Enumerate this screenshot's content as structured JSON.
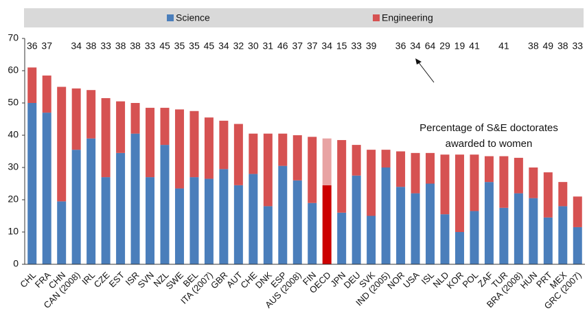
{
  "chart_data": {
    "type": "stacked_bar",
    "categories": [
      "CHL",
      "FRA",
      "CHN",
      "CAN (2008)",
      "IRL",
      "CZE",
      "EST",
      "ISR",
      "SVN",
      "NZL",
      "SWE",
      "BEL",
      "ITA (2007)",
      "GBR",
      "AUT",
      "CHE",
      "DNK",
      "ESP",
      "AUS (2008)",
      "FIN",
      "OECD",
      "JPN",
      "DEU",
      "SVK",
      "IND (2005)",
      "NOR",
      "USA",
      "ISL",
      "NLD",
      "KOR",
      "POL",
      "ZAF",
      "TUR",
      "BRA (2008)",
      "HUN",
      "PRT",
      "MEX",
      "GRC (2007)"
    ],
    "series": [
      {
        "name": "Science",
        "color": "#4a7ebb",
        "values": [
          50,
          47,
          19.5,
          35.5,
          39,
          27,
          34.5,
          40.5,
          27,
          37,
          23.5,
          27,
          26.5,
          29.5,
          24.5,
          28,
          18,
          30.5,
          26,
          19,
          24.5,
          16,
          27.5,
          15,
          30,
          24,
          22,
          25,
          15.5,
          10,
          16.5,
          25.5,
          17.5,
          22,
          20.5,
          14.5,
          18,
          11.5
        ]
      },
      {
        "name": "Engineering",
        "color": "#d65252",
        "values": [
          11,
          11.5,
          35.5,
          19,
          15,
          24.5,
          16,
          9.5,
          21.5,
          11.5,
          24.5,
          20.5,
          19,
          15,
          19,
          12.5,
          22.5,
          10,
          14,
          20.5,
          14.5,
          22.5,
          9.5,
          20.5,
          5.5,
          11,
          12.5,
          9.5,
          18.5,
          24,
          17.5,
          8,
          16,
          11,
          9.5,
          14,
          7.5,
          9.5
        ]
      }
    ],
    "highlight": {
      "category": "OECD",
      "colors": [
        "#cc0000",
        "#e8a3a3"
      ]
    },
    "top_labels": [
      36,
      37,
      null,
      34,
      38,
      33,
      38,
      38,
      33,
      45,
      35,
      35,
      45,
      34,
      32,
      30,
      31,
      46,
      37,
      37,
      34,
      15,
      33,
      39,
      null,
      36,
      34,
      64,
      29,
      19,
      41,
      null,
      41,
      null,
      38,
      49,
      38,
      33
    ],
    "annotation": [
      "Percentage of S&E doctorates",
      "awarded to women"
    ],
    "ylim": [
      0,
      70
    ],
    "yticks": [
      0,
      10,
      20,
      30,
      40,
      50,
      60,
      70
    ],
    "legend": "top"
  }
}
